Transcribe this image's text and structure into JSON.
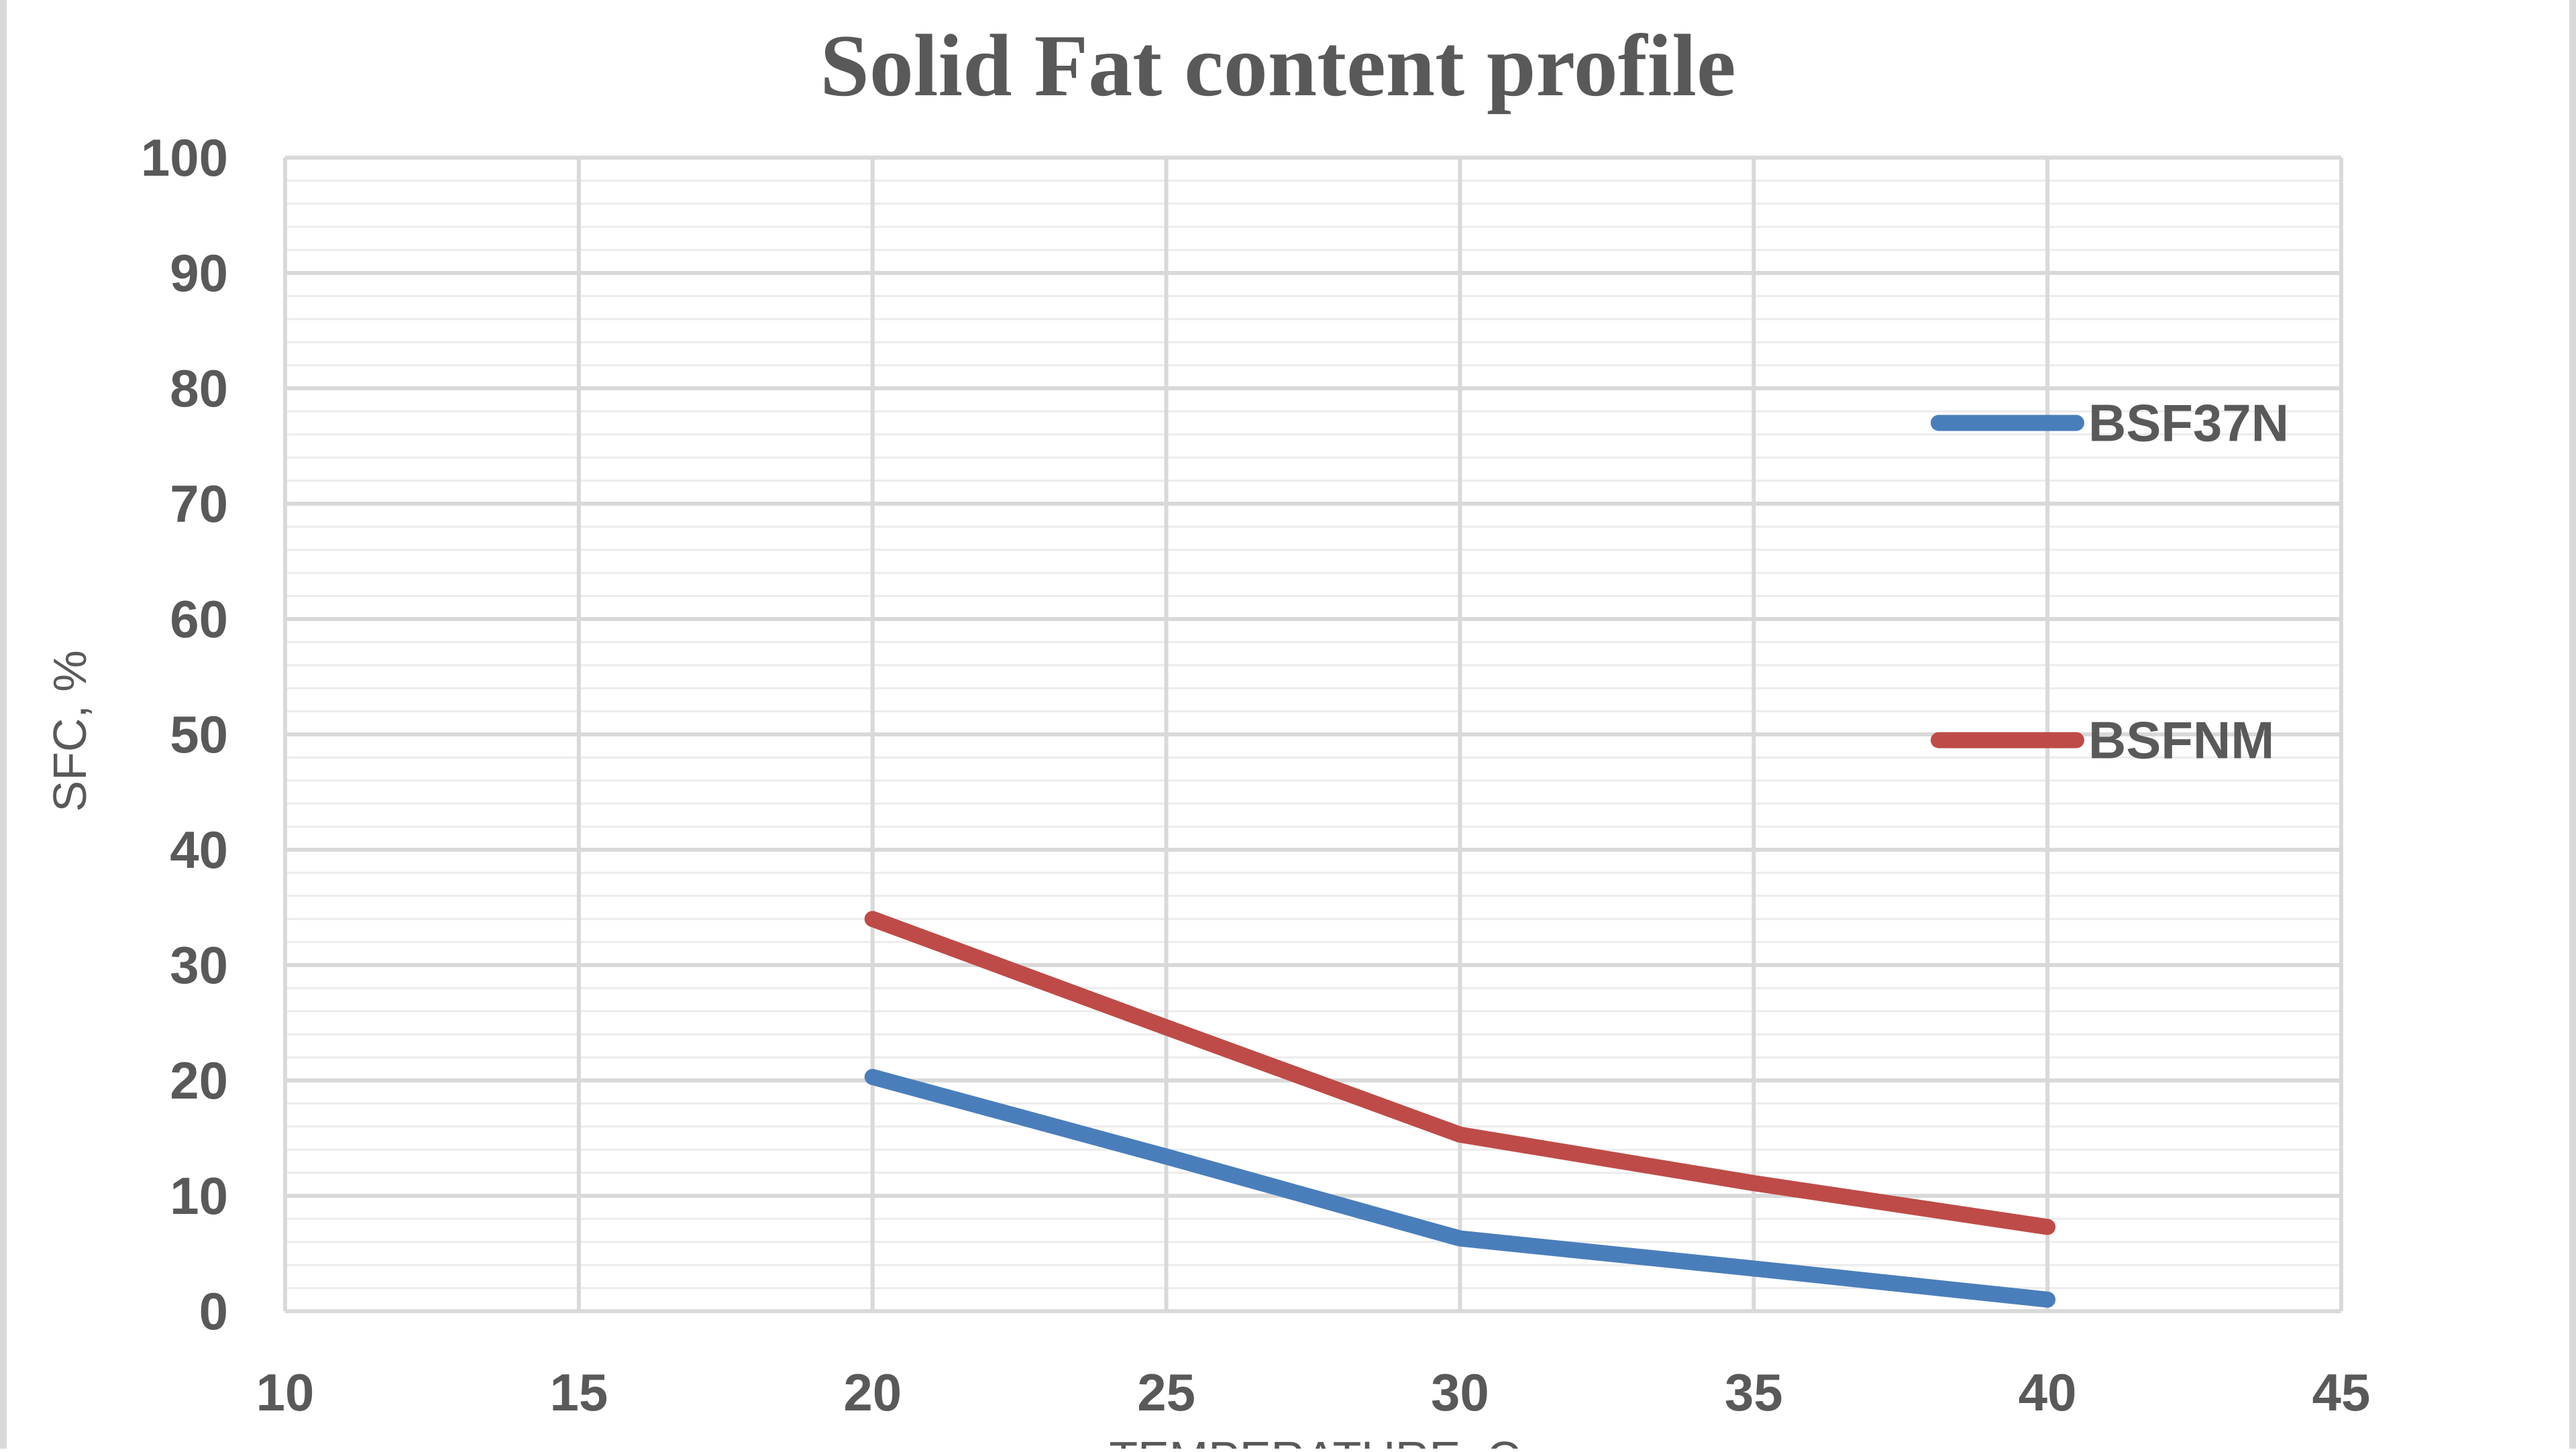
{
  "chart_data": {
    "type": "line",
    "title": "Solid Fat content profile",
    "xlabel": "TEMPERATURE, C",
    "ylabel": "SFC, %",
    "xlim": [
      10,
      45
    ],
    "ylim": [
      0,
      100
    ],
    "xticks": [
      10,
      15,
      20,
      25,
      30,
      35,
      40,
      45
    ],
    "yticks": [
      0,
      10,
      20,
      30,
      40,
      50,
      60,
      70,
      80,
      90,
      100
    ],
    "grid": true,
    "minor_grid_y_step": 2,
    "legend_position": "right",
    "x": [
      20,
      25,
      30,
      35,
      40
    ],
    "series": [
      {
        "name": "BSF37N",
        "color": "#4a7ebb",
        "values": [
          20.3,
          13.4,
          6.3,
          3.7,
          1.0
        ]
      },
      {
        "name": "BSFNM",
        "color": "#be4b48",
        "values": [
          34.0,
          24.6,
          15.3,
          11.1,
          7.3
        ]
      }
    ]
  }
}
